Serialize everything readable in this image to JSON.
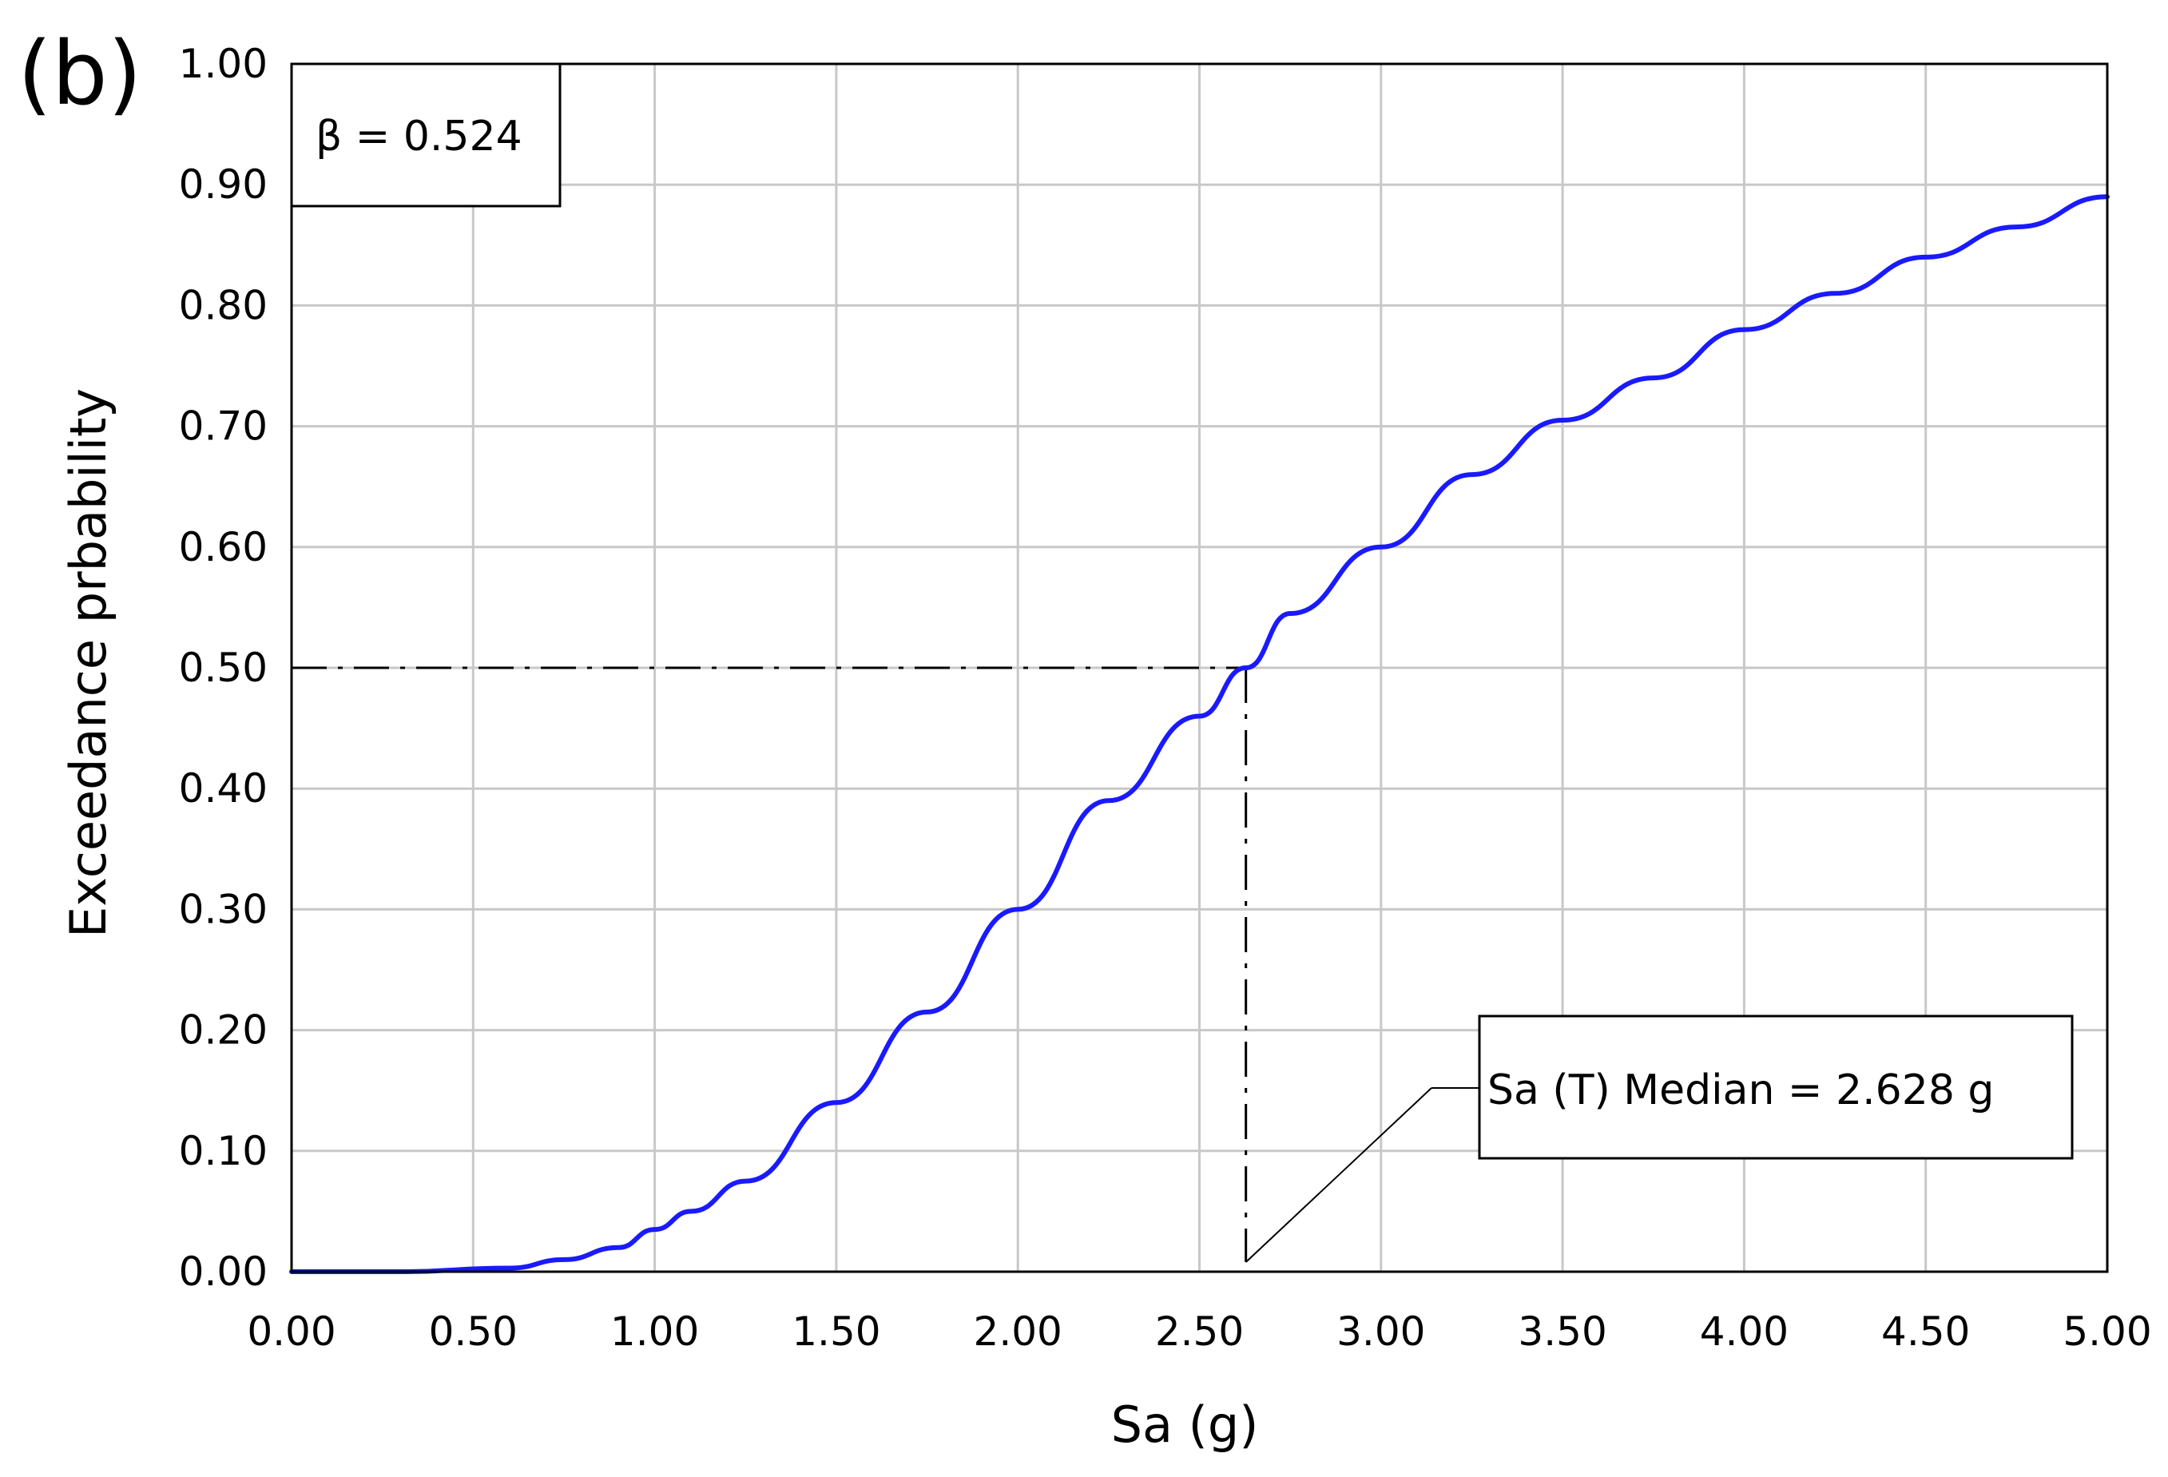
{
  "panel_label": "(b)",
  "chart_data": {
    "type": "line",
    "title": "",
    "xlabel": "Sa (g)",
    "ylabel": "Exceedance prbability",
    "xlim": [
      0,
      5
    ],
    "ylim": [
      0,
      1
    ],
    "x_ticks": [
      "0.00",
      "0.50",
      "1.00",
      "1.50",
      "2.00",
      "2.50",
      "3.00",
      "3.50",
      "4.00",
      "4.50",
      "5.00"
    ],
    "y_ticks": [
      "0.00",
      "0.10",
      "0.20",
      "0.30",
      "0.40",
      "0.50",
      "0.60",
      "0.70",
      "0.80",
      "0.90",
      "1.00"
    ],
    "grid": true,
    "legend": "none",
    "series": [
      {
        "color": "#1a1aff",
        "x": [
          0.0,
          0.3,
          0.6,
          0.75,
          0.9,
          1.0,
          1.1,
          1.25,
          1.5,
          1.75,
          2.0,
          2.25,
          2.5,
          2.628,
          2.75,
          3.0,
          3.25,
          3.5,
          3.75,
          4.0,
          4.25,
          4.5,
          4.75,
          5.0
        ],
        "y": [
          0.0,
          0.0,
          0.003,
          0.01,
          0.02,
          0.035,
          0.05,
          0.075,
          0.14,
          0.215,
          0.3,
          0.39,
          0.46,
          0.5,
          0.545,
          0.6,
          0.66,
          0.705,
          0.74,
          0.78,
          0.81,
          0.84,
          0.865,
          0.89
        ]
      }
    ],
    "reference_lines": {
      "median_x": 2.628,
      "median_y": 0.5,
      "color": "#000000",
      "style": "dash-dot"
    },
    "annotations": [
      {
        "text": "β = 0.524",
        "position": "top-left"
      },
      {
        "text": "Sa (T) Median = 2.628 g",
        "position": "bottom-right",
        "points_to": [
          2.628,
          0.0
        ]
      }
    ]
  }
}
